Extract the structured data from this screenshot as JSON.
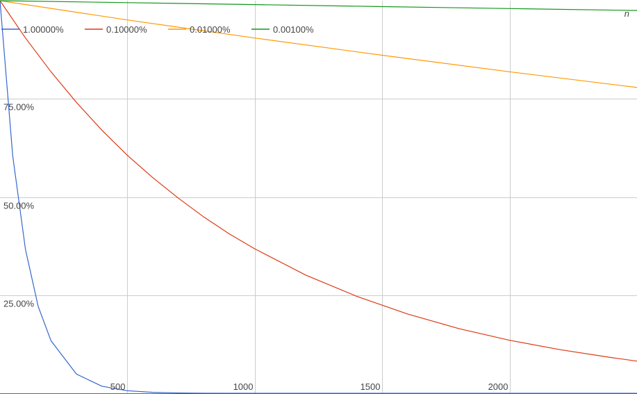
{
  "chart_data": {
    "type": "line",
    "title": "",
    "xlabel": "n",
    "ylabel": "",
    "xlim": [
      0,
      2500
    ],
    "ylim": [
      0,
      1
    ],
    "grid": true,
    "legend_position": "top-left",
    "x_ticks": [
      {
        "value": 500,
        "label": "500"
      },
      {
        "value": 1000,
        "label": "1000"
      },
      {
        "value": 1500,
        "label": "1500"
      },
      {
        "value": 2000,
        "label": "2000"
      }
    ],
    "y_ticks": [
      {
        "value": 0.25,
        "label": "25.00%"
      },
      {
        "value": 0.5,
        "label": "50.00%"
      },
      {
        "value": 0.75,
        "label": "75.00%"
      }
    ],
    "series": [
      {
        "name": "1.00000%",
        "color": "#3366cc",
        "x": [
          0,
          50,
          100,
          150,
          200,
          300,
          400,
          500,
          600,
          700,
          800,
          1000,
          1500,
          2000,
          2500
        ],
        "y": [
          1.0,
          0.605,
          0.366,
          0.221,
          0.134,
          0.049,
          0.018,
          0.0066,
          0.0024,
          0.0009,
          0.0003,
          4e-05,
          0.0,
          0.0,
          0.0
        ]
      },
      {
        "name": "0.10000%",
        "color": "#dc3912",
        "x": [
          0,
          100,
          200,
          300,
          400,
          500,
          600,
          700,
          800,
          900,
          1000,
          1200,
          1400,
          1600,
          1800,
          2000,
          2200,
          2400,
          2500
        ],
        "y": [
          1.0,
          0.905,
          0.819,
          0.741,
          0.67,
          0.606,
          0.549,
          0.497,
          0.449,
          0.406,
          0.368,
          0.301,
          0.247,
          0.202,
          0.165,
          0.135,
          0.111,
          0.091,
          0.082
        ]
      },
      {
        "name": "0.01000%",
        "color": "#ff9900",
        "x": [
          0,
          500,
          1000,
          1500,
          2000,
          2500
        ],
        "y": [
          1.0,
          0.951,
          0.905,
          0.861,
          0.819,
          0.779
        ]
      },
      {
        "name": "0.00100%",
        "color": "#109618",
        "x": [
          0,
          500,
          1000,
          1500,
          2000,
          2500
        ],
        "y": [
          1.0,
          0.995,
          0.99,
          0.985,
          0.98,
          0.975
        ]
      }
    ]
  }
}
